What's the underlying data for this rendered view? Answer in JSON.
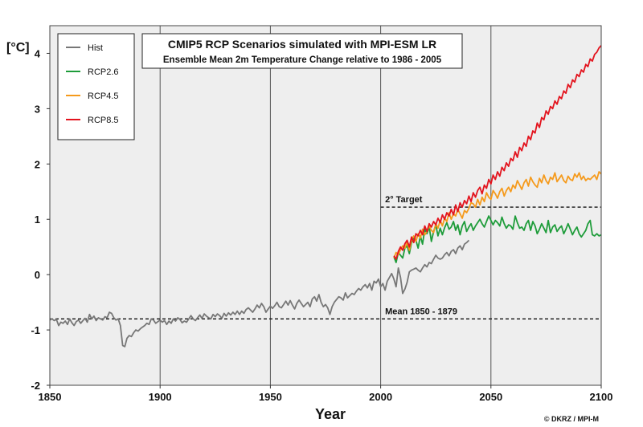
{
  "chart_data": {
    "type": "line",
    "title": "CMIP5 RCP Scenarios simulated with MPI-ESM LR",
    "subtitle": "Ensemble Mean 2m Temperature Change relative to 1986 - 2005",
    "xlabel": "Year",
    "ylabel": "[°C]",
    "xlim": [
      1850,
      2100
    ],
    "ylim": [
      -2,
      4.5
    ],
    "x_ticks": [
      1850,
      1900,
      1950,
      2000,
      2050,
      2100
    ],
    "y_ticks": [
      -2,
      -1,
      0,
      1,
      2,
      3,
      4
    ],
    "grid": "vertical",
    "legend": "top-left",
    "reference_lines": [
      {
        "label": "2° Target",
        "y": 1.22,
        "x_start": 2000,
        "x_end": 2100
      },
      {
        "label": "Mean 1850 - 1879",
        "y": -0.8,
        "x_start": 1850,
        "x_end": 2100
      }
    ],
    "credit": "© DKRZ / MPI-M",
    "series": [
      {
        "name": "Hist",
        "color": "#777777",
        "x_start": 1850,
        "values": [
          -0.82,
          -0.8,
          -0.83,
          -0.81,
          -0.92,
          -0.86,
          -0.88,
          -0.84,
          -0.9,
          -0.8,
          -0.87,
          -0.92,
          -0.85,
          -0.82,
          -0.88,
          -0.83,
          -0.79,
          -0.86,
          -0.72,
          -0.8,
          -0.75,
          -0.83,
          -0.78,
          -0.8,
          -0.82,
          -0.76,
          -0.78,
          -0.68,
          -0.7,
          -0.78,
          -0.82,
          -0.8,
          -0.92,
          -1.28,
          -1.3,
          -1.15,
          -1.1,
          -1.12,
          -1.05,
          -1.0,
          -1.02,
          -0.98,
          -0.95,
          -0.92,
          -0.88,
          -0.9,
          -0.8,
          -0.82,
          -0.88,
          -0.85,
          -0.82,
          -0.86,
          -0.83,
          -0.9,
          -0.84,
          -0.88,
          -0.8,
          -0.84,
          -0.78,
          -0.81,
          -0.87,
          -0.84,
          -0.86,
          -0.8,
          -0.74,
          -0.8,
          -0.83,
          -0.78,
          -0.73,
          -0.79,
          -0.71,
          -0.75,
          -0.78,
          -0.8,
          -0.72,
          -0.76,
          -0.71,
          -0.74,
          -0.79,
          -0.7,
          -0.75,
          -0.69,
          -0.73,
          -0.68,
          -0.72,
          -0.66,
          -0.72,
          -0.66,
          -0.7,
          -0.63,
          -0.6,
          -0.64,
          -0.68,
          -0.62,
          -0.55,
          -0.6,
          -0.52,
          -0.58,
          -0.68,
          -0.62,
          -0.57,
          -0.61,
          -0.56,
          -0.5,
          -0.58,
          -0.6,
          -0.54,
          -0.48,
          -0.55,
          -0.47,
          -0.55,
          -0.62,
          -0.52,
          -0.46,
          -0.52,
          -0.58,
          -0.54,
          -0.5,
          -0.58,
          -0.44,
          -0.4,
          -0.48,
          -0.36,
          -0.5,
          -0.58,
          -0.54,
          -0.6,
          -0.72,
          -0.58,
          -0.5,
          -0.45,
          -0.4,
          -0.42,
          -0.46,
          -0.33,
          -0.42,
          -0.38,
          -0.34,
          -0.36,
          -0.3,
          -0.25,
          -0.28,
          -0.22,
          -0.18,
          -0.24,
          -0.16,
          -0.28,
          -0.12,
          -0.15,
          -0.08,
          -0.22,
          -0.16,
          -0.28,
          -0.12,
          -0.05,
          0.02,
          -0.08,
          -0.22,
          0.12,
          -0.05,
          -0.34,
          -0.26,
          -0.14,
          0.05,
          0.08,
          0.1,
          0.12,
          0.08,
          0.05,
          0.12,
          0.18,
          0.14,
          0.22,
          0.2,
          0.28,
          0.35,
          0.3,
          0.28,
          0.3,
          0.36,
          0.4,
          0.34,
          0.42,
          0.45,
          0.38,
          0.48,
          0.52,
          0.45,
          0.55,
          0.58,
          0.62
        ]
      },
      {
        "name": "RCP2.6",
        "color": "#1e9c3a",
        "x_start": 2006,
        "values": [
          0.32,
          0.22,
          0.4,
          0.35,
          0.3,
          0.48,
          0.52,
          0.38,
          0.58,
          0.66,
          0.62,
          0.48,
          0.7,
          0.55,
          0.82,
          0.74,
          0.86,
          0.6,
          0.78,
          0.9,
          0.7,
          0.84,
          0.72,
          0.85,
          0.94,
          0.82,
          0.86,
          0.96,
          0.8,
          0.9,
          0.72,
          0.88,
          0.96,
          0.78,
          0.86,
          0.92,
          0.8,
          0.88,
          0.94,
          1.0,
          0.92,
          0.86,
          0.96,
          1.06,
          0.98,
          0.9,
          0.98,
          0.94,
          0.88,
          1.04,
          0.92,
          0.84,
          0.9,
          0.88,
          0.82,
          1.06,
          0.94,
          0.84,
          0.86,
          0.8,
          0.92,
          0.98,
          0.8,
          0.96,
          0.88,
          0.74,
          0.82,
          0.92,
          0.84,
          0.76,
          0.98,
          0.76,
          0.86,
          0.9,
          0.78,
          0.84,
          0.88,
          0.74,
          0.82,
          0.92,
          0.82,
          0.72,
          0.8,
          0.86,
          0.74,
          0.68,
          0.74,
          0.8,
          0.92,
          0.98,
          0.72,
          0.7,
          0.74,
          0.7,
          0.72
        ]
      },
      {
        "name": "RCP4.5",
        "color": "#f59a1c",
        "x_start": 2006,
        "values": [
          0.3,
          0.4,
          0.36,
          0.45,
          0.52,
          0.48,
          0.58,
          0.44,
          0.62,
          0.7,
          0.6,
          0.74,
          0.66,
          0.82,
          0.72,
          0.78,
          0.88,
          0.8,
          0.76,
          0.92,
          0.84,
          0.98,
          0.88,
          1.02,
          0.96,
          1.12,
          1.0,
          1.1,
          1.06,
          1.18,
          1.1,
          1.02,
          1.16,
          1.12,
          1.2,
          1.3,
          1.28,
          1.22,
          1.36,
          1.26,
          1.4,
          1.32,
          1.48,
          1.4,
          1.36,
          1.52,
          1.46,
          1.38,
          1.5,
          1.56,
          1.42,
          1.52,
          1.58,
          1.5,
          1.62,
          1.56,
          1.7,
          1.62,
          1.54,
          1.66,
          1.72,
          1.6,
          1.76,
          1.68,
          1.62,
          1.58,
          1.74,
          1.66,
          1.8,
          1.7,
          1.64,
          1.76,
          1.72,
          1.84,
          1.68,
          1.74,
          1.8,
          1.7,
          1.66,
          1.78,
          1.72,
          1.7,
          1.82,
          1.76,
          1.84,
          1.72,
          1.78,
          1.7,
          1.74,
          1.72,
          1.76,
          1.8,
          1.72,
          1.86,
          1.82
        ]
      },
      {
        "name": "RCP8.5",
        "color": "#e3141e",
        "x_start": 2006,
        "values": [
          0.34,
          0.28,
          0.42,
          0.5,
          0.44,
          0.56,
          0.62,
          0.5,
          0.68,
          0.58,
          0.74,
          0.7,
          0.8,
          0.72,
          0.88,
          0.78,
          0.92,
          0.86,
          0.96,
          0.9,
          1.02,
          0.94,
          1.08,
          1.0,
          1.12,
          1.06,
          1.18,
          1.08,
          1.26,
          1.14,
          1.3,
          1.22,
          1.34,
          1.28,
          1.42,
          1.32,
          1.48,
          1.4,
          1.52,
          1.58,
          1.46,
          1.62,
          1.56,
          1.72,
          1.64,
          1.8,
          1.72,
          1.86,
          1.78,
          1.94,
          1.88,
          2.02,
          1.96,
          2.1,
          2.06,
          2.22,
          2.12,
          2.3,
          2.24,
          2.38,
          2.32,
          2.5,
          2.44,
          2.6,
          2.56,
          2.74,
          2.66,
          2.84,
          2.8,
          2.96,
          2.9,
          3.04,
          3.0,
          3.14,
          3.08,
          3.22,
          3.18,
          3.32,
          3.28,
          3.44,
          3.38,
          3.52,
          3.48,
          3.62,
          3.58,
          3.7,
          3.66,
          3.8,
          3.76,
          3.9,
          3.86,
          3.98,
          4.02,
          4.1,
          4.14
        ]
      }
    ]
  }
}
